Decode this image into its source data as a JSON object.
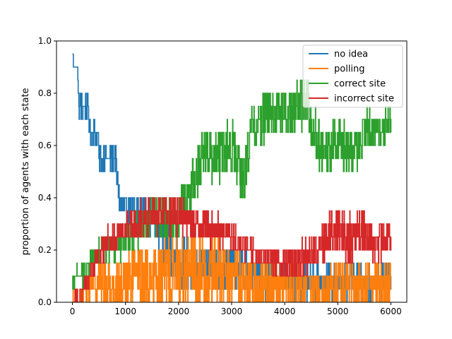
{
  "chart_data": {
    "type": "line",
    "title": "",
    "xlabel": "",
    "ylabel": "proportion of agents with each state",
    "xlim": [
      -300,
      6300
    ],
    "ylim": [
      0.0,
      1.0
    ],
    "xticks": [
      0,
      1000,
      2000,
      3000,
      4000,
      5000,
      6000
    ],
    "yticks": [
      0.0,
      0.2,
      0.4,
      0.6,
      0.8,
      1.0
    ],
    "xtick_labels": [
      "0",
      "1000",
      "2000",
      "3000",
      "4000",
      "5000",
      "6000"
    ],
    "ytick_labels": [
      "0.0",
      "0.2",
      "0.4",
      "0.6",
      "0.8",
      "1.0"
    ],
    "grid": false,
    "legend_position": "top-right",
    "step": 0.05,
    "series": [
      {
        "name": "no idea",
        "color": "#1f77b4",
        "anchors": [
          [
            0,
            0.95
          ],
          [
            30,
            0.9
          ],
          [
            100,
            0.9
          ],
          [
            110,
            0.75
          ],
          [
            300,
            0.75
          ],
          [
            320,
            0.65
          ],
          [
            480,
            0.65
          ],
          [
            500,
            0.55
          ],
          [
            780,
            0.55
          ],
          [
            800,
            0.58
          ],
          [
            850,
            0.45
          ],
          [
            900,
            0.38
          ],
          [
            950,
            0.35
          ],
          [
            1100,
            0.35
          ],
          [
            1200,
            0.35
          ],
          [
            1400,
            0.33
          ],
          [
            1600,
            0.3
          ],
          [
            1700,
            0.25
          ],
          [
            1800,
            0.2
          ],
          [
            1900,
            0.17
          ],
          [
            2000,
            0.15
          ],
          [
            2400,
            0.13
          ],
          [
            3000,
            0.13
          ],
          [
            3500,
            0.1
          ],
          [
            4000,
            0.08
          ],
          [
            4500,
            0.08
          ],
          [
            5000,
            0.08
          ],
          [
            5500,
            0.08
          ],
          [
            6000,
            0.08
          ]
        ],
        "noise": [
          [
            0,
            0
          ],
          [
            110,
            0.03
          ],
          [
            1000,
            0.04
          ],
          [
            1800,
            0.06
          ],
          [
            2200,
            0.07
          ],
          [
            3000,
            0.06
          ],
          [
            4000,
            0.05
          ],
          [
            6000,
            0.05
          ]
        ]
      },
      {
        "name": "polling",
        "color": "#ff7f0e",
        "anchors": [
          [
            0,
            0.0
          ],
          [
            200,
            0.03
          ],
          [
            400,
            0.1
          ],
          [
            600,
            0.07
          ],
          [
            800,
            0.05
          ],
          [
            1000,
            0.07
          ],
          [
            1200,
            0.1
          ],
          [
            1500,
            0.08
          ],
          [
            1700,
            0.1
          ],
          [
            2000,
            0.12
          ],
          [
            2300,
            0.12
          ],
          [
            2600,
            0.12
          ],
          [
            3000,
            0.1
          ],
          [
            3500,
            0.06
          ],
          [
            4000,
            0.05
          ],
          [
            4500,
            0.05
          ],
          [
            5000,
            0.06
          ],
          [
            5500,
            0.07
          ],
          [
            6000,
            0.07
          ]
        ],
        "noise": [
          [
            0,
            0.02
          ],
          [
            300,
            0.06
          ],
          [
            1200,
            0.08
          ],
          [
            2200,
            0.1
          ],
          [
            3500,
            0.07
          ],
          [
            4500,
            0.06
          ],
          [
            6000,
            0.06
          ]
        ]
      },
      {
        "name": "correct site",
        "color": "#2ca02c",
        "anchors": [
          [
            0,
            0.05
          ],
          [
            30,
            0.1
          ],
          [
            250,
            0.1
          ],
          [
            300,
            0.15
          ],
          [
            500,
            0.2
          ],
          [
            900,
            0.22
          ],
          [
            1000,
            0.25
          ],
          [
            1200,
            0.28
          ],
          [
            1400,
            0.3
          ],
          [
            1500,
            0.33
          ],
          [
            1700,
            0.33
          ],
          [
            1900,
            0.3
          ],
          [
            2100,
            0.38
          ],
          [
            2300,
            0.45
          ],
          [
            2450,
            0.58
          ],
          [
            2700,
            0.56
          ],
          [
            3000,
            0.6
          ],
          [
            3200,
            0.45
          ],
          [
            3400,
            0.66
          ],
          [
            3600,
            0.72
          ],
          [
            3900,
            0.72
          ],
          [
            4200,
            0.74
          ],
          [
            4400,
            0.78
          ],
          [
            4600,
            0.62
          ],
          [
            4800,
            0.58
          ],
          [
            5000,
            0.62
          ],
          [
            5300,
            0.58
          ],
          [
            5500,
            0.65
          ],
          [
            5700,
            0.66
          ],
          [
            6000,
            0.68
          ]
        ],
        "noise": [
          [
            0,
            0.02
          ],
          [
            1000,
            0.04
          ],
          [
            2000,
            0.06
          ],
          [
            2400,
            0.07
          ],
          [
            3500,
            0.07
          ],
          [
            4500,
            0.07
          ],
          [
            5000,
            0.06
          ],
          [
            6000,
            0.05
          ]
        ]
      },
      {
        "name": "incorrect site",
        "color": "#d62728",
        "anchors": [
          [
            0,
            0.0
          ],
          [
            150,
            0.03
          ],
          [
            350,
            0.12
          ],
          [
            500,
            0.18
          ],
          [
            700,
            0.25
          ],
          [
            900,
            0.28
          ],
          [
            1100,
            0.3
          ],
          [
            1300,
            0.33
          ],
          [
            1500,
            0.34
          ],
          [
            1800,
            0.33
          ],
          [
            2100,
            0.33
          ],
          [
            2300,
            0.3
          ],
          [
            2600,
            0.28
          ],
          [
            2900,
            0.27
          ],
          [
            3200,
            0.22
          ],
          [
            3400,
            0.2
          ],
          [
            3600,
            0.18
          ],
          [
            4000,
            0.15
          ],
          [
            4400,
            0.17
          ],
          [
            4600,
            0.2
          ],
          [
            4800,
            0.26
          ],
          [
            5000,
            0.28
          ],
          [
            5200,
            0.24
          ],
          [
            5400,
            0.28
          ],
          [
            5700,
            0.22
          ],
          [
            5900,
            0.25
          ],
          [
            6000,
            0.25
          ]
        ],
        "noise": [
          [
            0,
            0.02
          ],
          [
            500,
            0.03
          ],
          [
            1200,
            0.05
          ],
          [
            2000,
            0.05
          ],
          [
            3500,
            0.03
          ],
          [
            4500,
            0.05
          ],
          [
            5200,
            0.07
          ],
          [
            6000,
            0.05
          ]
        ]
      }
    ]
  }
}
